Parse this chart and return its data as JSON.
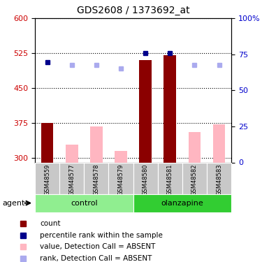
{
  "title": "GDS2608 / 1373692_at",
  "samples": [
    "GSM48559",
    "GSM48577",
    "GSM48578",
    "GSM48579",
    "GSM48580",
    "GSM48581",
    "GSM48582",
    "GSM48583"
  ],
  "ymin": 290,
  "ymax": 600,
  "yticks": [
    300,
    375,
    450,
    525,
    600
  ],
  "y2ticks": [
    0,
    25,
    50,
    75,
    100
  ],
  "bar_base": 290,
  "red_bars": [
    375,
    null,
    null,
    null,
    510,
    520,
    null,
    null
  ],
  "red_bar_color": "#8b0000",
  "pink_bars": [
    null,
    328,
    367,
    315,
    null,
    null,
    355,
    372
  ],
  "pink_bar_color": "#ffb6c1",
  "blue_squares": [
    505,
    null,
    null,
    null,
    525,
    525,
    null,
    null
  ],
  "blue_square_color": "#00008b",
  "light_blue_squares": [
    null,
    500,
    500,
    492,
    null,
    null,
    500,
    500
  ],
  "light_blue_color": "#aaaaee",
  "red_tick_color": "#cc0000",
  "blue_tick_color": "#0000cc",
  "control_color": "#90ee90",
  "olanzapine_color": "#32cd32",
  "label_bg_color": "#c8c8c8",
  "legend_items": [
    {
      "label": "count",
      "color": "#8b0000"
    },
    {
      "label": "percentile rank within the sample",
      "color": "#00008b"
    },
    {
      "label": "value, Detection Call = ABSENT",
      "color": "#ffb6c1"
    },
    {
      "label": "rank, Detection Call = ABSENT",
      "color": "#aaaaee"
    }
  ]
}
